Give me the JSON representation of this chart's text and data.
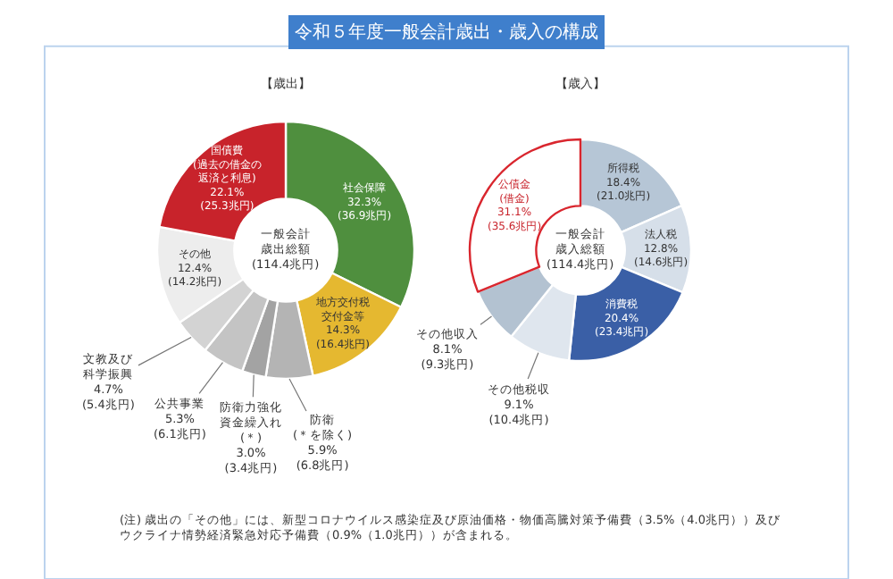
{
  "chart_data": [
    {
      "type": "donut",
      "title": "令和５年度一般会計歳出・歳入の構成",
      "subtitle": "【歳出】",
      "categories": [
        "社会保障",
        "地方交付税交付金等",
        "防衛(＊を除く)",
        "防衛力強化資金繰入れ(＊)",
        "公共事業",
        "文教及び科学振興",
        "その他",
        "国債費(過去の借金の返済と利息)"
      ],
      "values": [
        32.3,
        14.3,
        5.9,
        3.0,
        5.3,
        4.7,
        12.4,
        22.1
      ],
      "value_labels": [
        "32.3%\n(36.9兆円)",
        "14.3%\n(16.4兆円)",
        "5.9%\n(6.8兆円)",
        "3.0%\n(3.4兆円)",
        "5.3%\n(6.1兆円)",
        "4.7%\n(5.4兆円)",
        "12.4%\n(14.2兆円)",
        "22.1%\n(25.3兆円)"
      ],
      "colors": [
        "#4f8f3e",
        "#e5b830",
        "#b4b4b4",
        "#a3a3a3",
        "#c4c4c4",
        "#d3d3d3",
        "#ededed",
        "#c8232b"
      ],
      "annotations": [
        "一般会計歳出総額(114.4兆円)",
        "(注) 歳出の「その他」には、新型コロナウイルス感染症及び原油価格・物価高騰対策予備費（3.5%（4.0兆円））及びウクライナ情勢経済緊急対応予備費（0.9%（1.0兆円））が含まれる。"
      ]
    },
    {
      "type": "donut",
      "title": "【歳入】",
      "categories": [
        "所得税",
        "法人税",
        "消費税",
        "その他税収",
        "その他収入",
        "公債金(借金)"
      ],
      "values": [
        18.4,
        12.8,
        20.4,
        9.1,
        8.1,
        31.1
      ],
      "value_labels": [
        "18.4%\n(21.0兆円)",
        "12.8%\n(14.6兆円)",
        "20.4%\n(23.4兆円)",
        "9.1%\n(10.4兆円)",
        "8.1%\n(9.3兆円)",
        "31.1%\n(35.6兆円)"
      ],
      "colors": [
        "#b6c6d6",
        "#d6dfe9",
        "#3a5fa6",
        "#dfe6ee",
        "#b3c2d1",
        "#ffffff"
      ],
      "annotations": [
        "一般会計歳入総額(114.4兆円)"
      ]
    }
  ]
}
